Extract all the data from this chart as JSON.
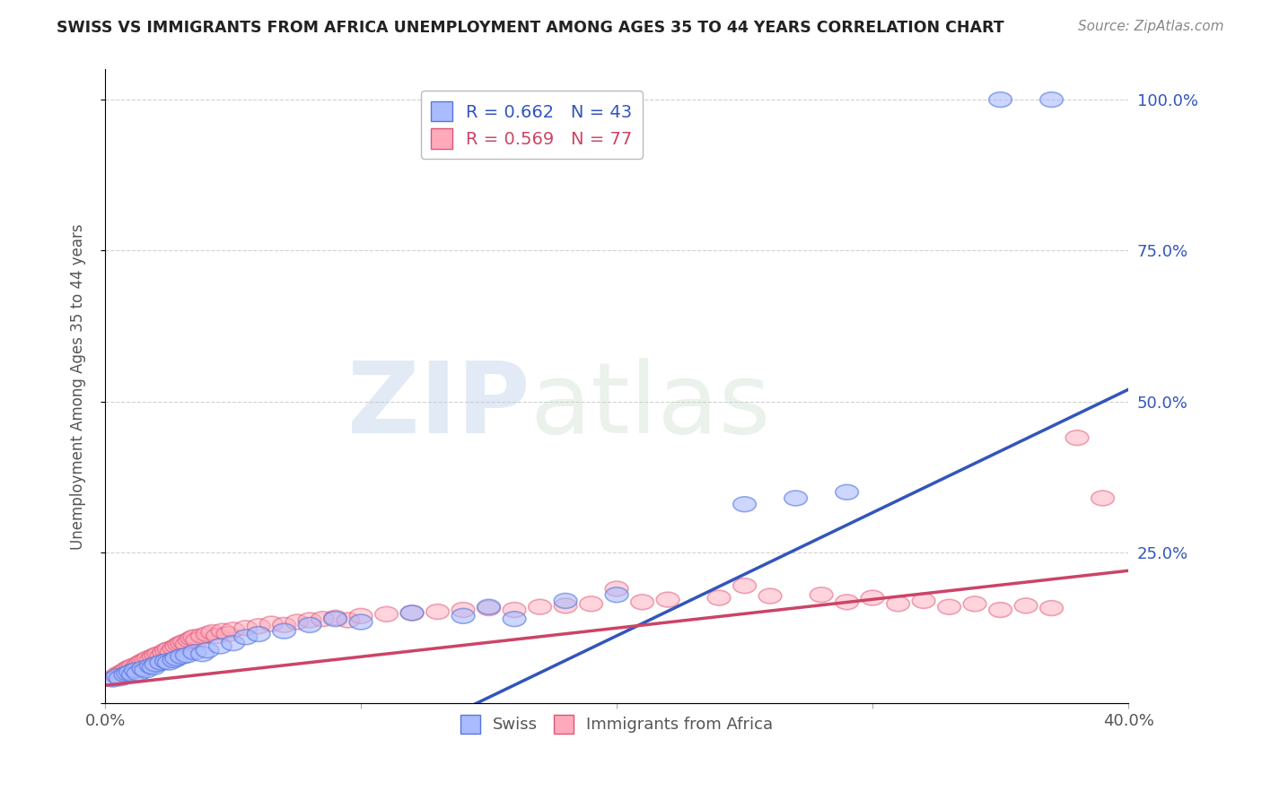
{
  "title": "SWISS VS IMMIGRANTS FROM AFRICA UNEMPLOYMENT AMONG AGES 35 TO 44 YEARS CORRELATION CHART",
  "source": "Source: ZipAtlas.com",
  "ylabel": "Unemployment Among Ages 35 to 44 years",
  "xlim": [
    0.0,
    0.4
  ],
  "ylim": [
    0.0,
    1.05
  ],
  "yticks_right": [
    0.25,
    0.5,
    0.75,
    1.0
  ],
  "yticklabels_right": [
    "25.0%",
    "50.0%",
    "75.0%",
    "100.0%"
  ],
  "swiss_R": 0.662,
  "swiss_N": 43,
  "africa_R": 0.569,
  "africa_N": 77,
  "swiss_fill_color": "#AABBFF",
  "swiss_edge_color": "#5577DD",
  "africa_fill_color": "#FFAABB",
  "africa_edge_color": "#DD5577",
  "swiss_line_color": "#3355BB",
  "africa_line_color": "#CC4466",
  "watermark_zip": "ZIP",
  "watermark_atlas": "atlas",
  "background_color": "#FFFFFF",
  "grid_color": "#CCCCCC",
  "blue_line_x": [
    0.145,
    0.4
  ],
  "blue_line_y": [
    0.0,
    0.52
  ],
  "pink_line_x": [
    0.0,
    0.4
  ],
  "pink_line_y": [
    0.03,
    0.22
  ],
  "swiss_scatter_x": [
    0.003,
    0.005,
    0.006,
    0.008,
    0.009,
    0.01,
    0.011,
    0.012,
    0.013,
    0.015,
    0.016,
    0.018,
    0.019,
    0.02,
    0.022,
    0.024,
    0.025,
    0.027,
    0.028,
    0.03,
    0.032,
    0.035,
    0.038,
    0.04,
    0.045,
    0.05,
    0.055,
    0.06,
    0.07,
    0.08,
    0.09,
    0.1,
    0.12,
    0.14,
    0.15,
    0.16,
    0.18,
    0.2,
    0.25,
    0.27,
    0.29,
    0.35,
    0.37
  ],
  "swiss_scatter_y": [
    0.04,
    0.045,
    0.042,
    0.048,
    0.05,
    0.052,
    0.048,
    0.055,
    0.05,
    0.058,
    0.055,
    0.062,
    0.06,
    0.065,
    0.068,
    0.07,
    0.068,
    0.072,
    0.075,
    0.078,
    0.08,
    0.085,
    0.082,
    0.088,
    0.095,
    0.1,
    0.11,
    0.115,
    0.12,
    0.13,
    0.14,
    0.135,
    0.15,
    0.145,
    0.16,
    0.14,
    0.17,
    0.18,
    0.33,
    0.34,
    0.35,
    1.0,
    1.0
  ],
  "africa_scatter_x": [
    0.003,
    0.005,
    0.006,
    0.007,
    0.008,
    0.009,
    0.01,
    0.011,
    0.012,
    0.013,
    0.014,
    0.015,
    0.016,
    0.017,
    0.018,
    0.019,
    0.02,
    0.021,
    0.022,
    0.023,
    0.024,
    0.025,
    0.026,
    0.027,
    0.028,
    0.029,
    0.03,
    0.031,
    0.032,
    0.033,
    0.034,
    0.035,
    0.036,
    0.038,
    0.04,
    0.042,
    0.044,
    0.046,
    0.048,
    0.05,
    0.055,
    0.06,
    0.065,
    0.07,
    0.075,
    0.08,
    0.085,
    0.09,
    0.095,
    0.1,
    0.11,
    0.12,
    0.13,
    0.14,
    0.15,
    0.16,
    0.17,
    0.18,
    0.19,
    0.2,
    0.21,
    0.22,
    0.24,
    0.25,
    0.26,
    0.28,
    0.29,
    0.3,
    0.31,
    0.32,
    0.33,
    0.34,
    0.35,
    0.36,
    0.37,
    0.38,
    0.39
  ],
  "africa_scatter_y": [
    0.042,
    0.048,
    0.05,
    0.052,
    0.055,
    0.058,
    0.06,
    0.062,
    0.058,
    0.065,
    0.068,
    0.07,
    0.072,
    0.075,
    0.072,
    0.078,
    0.08,
    0.082,
    0.078,
    0.085,
    0.088,
    0.09,
    0.085,
    0.092,
    0.095,
    0.098,
    0.1,
    0.102,
    0.098,
    0.105,
    0.108,
    0.11,
    0.105,
    0.112,
    0.115,
    0.118,
    0.112,
    0.12,
    0.115,
    0.122,
    0.125,
    0.128,
    0.132,
    0.13,
    0.135,
    0.138,
    0.14,
    0.142,
    0.138,
    0.145,
    0.148,
    0.15,
    0.152,
    0.155,
    0.158,
    0.155,
    0.16,
    0.162,
    0.165,
    0.19,
    0.168,
    0.172,
    0.175,
    0.195,
    0.178,
    0.18,
    0.168,
    0.175,
    0.165,
    0.17,
    0.16,
    0.165,
    0.155,
    0.162,
    0.158,
    0.44,
    0.34
  ]
}
